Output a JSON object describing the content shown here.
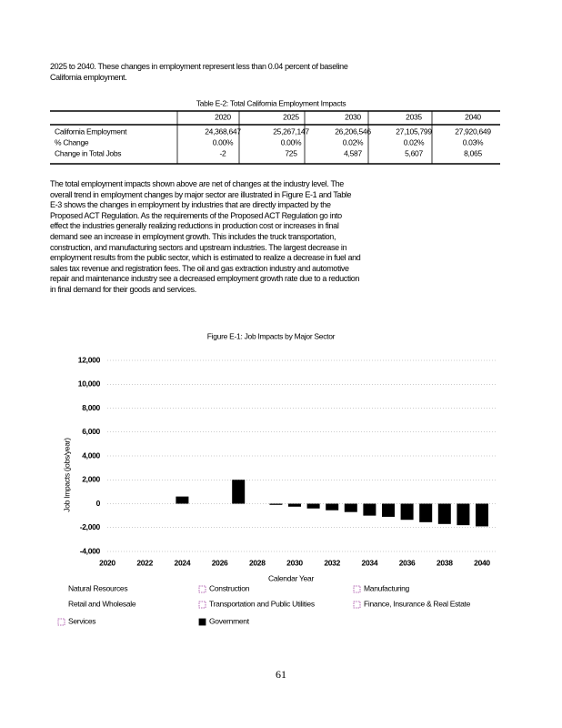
{
  "paragraph_1": [
    "2025 to 2040. These changes in employment represent less than 0.04 percent of baseline",
    "California employment."
  ],
  "table": {
    "caption": "Table E-2: Total California Employment Impacts",
    "header": [
      "",
      "2020",
      "2025",
      "2030",
      "2035",
      "2040"
    ],
    "rows": [
      [
        "California Employment",
        "24,368,647",
        "25,267,147",
        "26,206,546",
        "27,105,799",
        "27,920,649"
      ],
      [
        "% Change",
        "0.00%",
        "0.00%",
        "0.02%",
        "0.02%",
        "0.03%"
      ],
      [
        "Change in Total Jobs",
        "-2",
        "725",
        "4,587",
        "5,607",
        "8,065"
      ]
    ]
  },
  "paragraph_2": [
    "The total employment impacts shown above are net of changes at the industry level. The",
    "overall trend in employment changes by major sector are illustrated in Figure E-1 and Table",
    "E-3 shows the changes in employment by industries that are directly impacted by the",
    "Proposed ACT Regulation. As the requirements of the Proposed ACT Regulation go into",
    "effect the industries generally realizing reductions in production cost or increases in final",
    "demand see an increase in employment growth. This includes the truck transportation,",
    "construction, and manufacturing sectors and upstream industries. The largest decrease in",
    "employment results from the public sector, which is estimated to realize a decrease in fuel and",
    "sales tax revenue and registration fees. The oil and gas extraction industry and automotive",
    "repair and maintenance industry see a decreased employment growth rate due to a reduction",
    "in final demand for their goods and services."
  ],
  "chart_data": {
    "type": "bar",
    "title": "Figure E-1: Job Impacts by Major Sector",
    "x_label": "Calendar Year",
    "y_label": "Job Impacts (jobs/year)",
    "x": [
      2024,
      2027,
      2029,
      2030,
      2031,
      2032,
      2033,
      2034,
      2035,
      2036,
      2037,
      2038,
      2039,
      2040
    ],
    "series": [
      {
        "name": "Natural Resources",
        "color": "none",
        "values": [
          null,
          null,
          null,
          null,
          null,
          null,
          null,
          null,
          null,
          null,
          null,
          null,
          null,
          null
        ]
      },
      {
        "name": "Retail and Wholesale",
        "color": "none",
        "values": [
          null,
          null,
          null,
          null,
          null,
          null,
          null,
          null,
          null,
          null,
          null,
          null,
          null,
          null
        ]
      },
      {
        "name": "Services",
        "color": "#ffffff",
        "values": [
          null,
          null,
          null,
          null,
          null,
          null,
          null,
          null,
          null,
          null,
          null,
          null,
          null,
          null
        ]
      },
      {
        "name": "Construction",
        "color": "#ffffff",
        "values": [
          null,
          null,
          null,
          null,
          null,
          null,
          null,
          null,
          null,
          null,
          null,
          null,
          null,
          null
        ]
      },
      {
        "name": "Transportation and Public Utilities",
        "color": "#ffffff",
        "values": [
          null,
          null,
          null,
          null,
          null,
          null,
          null,
          null,
          null,
          null,
          null,
          null,
          null,
          null
        ]
      },
      {
        "name": "Government",
        "color": "#000000",
        "values": [
          600,
          2000,
          -100,
          -250,
          -400,
          -550,
          -700,
          -1000,
          -1100,
          -1350,
          -1550,
          -1700,
          -1800,
          -1900
        ]
      },
      {
        "name": "Manufacturing",
        "color": "#ffffff",
        "values": [
          null,
          null,
          null,
          null,
          null,
          null,
          null,
          null,
          null,
          null,
          null,
          null,
          null,
          null
        ]
      },
      {
        "name": "Finance, Insurance & Real Estate",
        "color": "#ffffff",
        "values": [
          null,
          null,
          null,
          null,
          null,
          null,
          null,
          null,
          null,
          null,
          null,
          null,
          null,
          null
        ]
      }
    ],
    "xlim": [
      2020,
      2040
    ],
    "xticks": [
      2020,
      2022,
      2024,
      2026,
      2028,
      2030,
      2032,
      2034,
      2036,
      2038,
      2040
    ],
    "ylim": [
      -4000,
      12000
    ],
    "yticks": [
      {
        "value": -4000,
        "label": "-4,000"
      },
      {
        "value": -2000,
        "label": "-2,000"
      },
      0,
      {
        "value": 2000,
        "label": "2,000"
      },
      {
        "value": 4000,
        "label": "4,000"
      },
      {
        "value": 6000,
        "label": "6,000"
      },
      {
        "value": 8000,
        "label": "8,000"
      },
      {
        "value": 10000,
        "label": "10,000"
      },
      {
        "value": 12000,
        "label": "12,000"
      }
    ],
    "grid": true
  },
  "page_number": "61"
}
